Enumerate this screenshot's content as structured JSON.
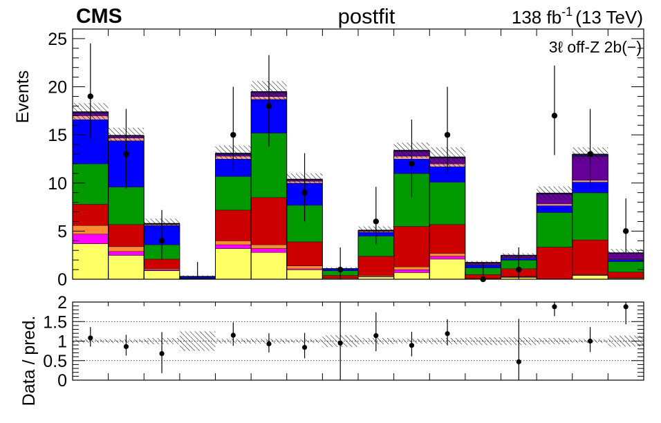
{
  "header": {
    "experiment": "CMS",
    "fit_label": "postfit",
    "lumi_value": "138 fb",
    "lumi_exp": "-1",
    "lumi_energy": "(13 TeV)",
    "region": "3ℓ  off-Z 2b(−)"
  },
  "chart_data": [
    {
      "type": "bar",
      "stacked": true,
      "ylabel": "Events",
      "ylim": [
        0,
        26
      ],
      "yticks": [
        "0",
        "5",
        "10",
        "15",
        "20",
        "25"
      ],
      "bins": 16,
      "colors": {
        "yellow": "#ffff66",
        "magenta": "#ff00ff",
        "orange": "#ff8c33",
        "red": "#cc0000",
        "green": "#009900",
        "blue": "#0000ff",
        "pink": "#f0a0a0",
        "purple": "#660099",
        "navy": "#1a1a66"
      },
      "series": [
        {
          "color": "yellow",
          "values": [
            3.7,
            2.5,
            0.9,
            0.0,
            3.2,
            2.8,
            1.0,
            0.1,
            0.25,
            0.7,
            2.1,
            0.05,
            0.2,
            0.05,
            0.4,
            0.1
          ]
        },
        {
          "color": "magenta",
          "values": [
            1.0,
            0.4,
            0.1,
            0.0,
            0.4,
            0.4,
            0.1,
            0.0,
            0.05,
            0.3,
            0.3,
            0.0,
            0.05,
            0.0,
            0.05,
            0.0
          ]
        },
        {
          "color": "orange",
          "values": [
            0.9,
            0.5,
            0.1,
            0.0,
            0.4,
            0.4,
            0.3,
            0.0,
            0.1,
            0.3,
            0.3,
            0.05,
            0.05,
            0.0,
            0.05,
            0.05
          ]
        },
        {
          "color": "red",
          "values": [
            2.2,
            2.3,
            1.0,
            0.05,
            3.2,
            4.9,
            2.5,
            0.3,
            2.0,
            4.2,
            3.0,
            0.4,
            0.8,
            3.3,
            3.6,
            0.6
          ]
        },
        {
          "color": "green",
          "values": [
            4.2,
            3.9,
            1.5,
            0.05,
            3.5,
            6.7,
            3.8,
            0.5,
            2.1,
            5.5,
            4.4,
            0.7,
            0.9,
            3.6,
            4.9,
            1.1
          ]
        },
        {
          "color": "blue",
          "values": [
            4.6,
            4.8,
            2.0,
            0.15,
            1.8,
            3.5,
            2.3,
            0.2,
            0.4,
            1.5,
            1.6,
            0.3,
            0.2,
            0.7,
            1.1,
            0.2
          ]
        },
        {
          "color": "pink",
          "values": [
            0.4,
            0.3,
            0.1,
            0.0,
            0.3,
            0.3,
            0.2,
            0.0,
            0.1,
            0.3,
            0.3,
            0.05,
            0.05,
            0.2,
            0.2,
            0.05
          ]
        },
        {
          "color": "purple",
          "values": [
            0.3,
            0.2,
            0.05,
            0.0,
            0.2,
            0.4,
            0.15,
            0.0,
            0.05,
            0.5,
            0.6,
            0.15,
            0.2,
            1.0,
            2.5,
            0.6
          ]
        },
        {
          "color": "navy",
          "values": [
            0.1,
            0.05,
            0.05,
            0.05,
            0.1,
            0.1,
            0.05,
            0.0,
            0.05,
            0.1,
            0.1,
            0.05,
            0.05,
            0.1,
            0.2,
            0.05
          ]
        }
      ],
      "uncertainty": [
        0.9,
        0.8,
        0.5,
        0.1,
        0.8,
        1.1,
        0.6,
        0.15,
        0.4,
        0.8,
        1.0,
        0.15,
        0.2,
        0.7,
        0.7,
        0.4
      ],
      "data": {
        "values": [
          19,
          13,
          4,
          null,
          15,
          18,
          9,
          1,
          6,
          12,
          15,
          0,
          1,
          17,
          13,
          5
        ],
        "err_low": [
          4.4,
          3.6,
          2.0,
          null,
          3.9,
          4.2,
          3.0,
          1.0,
          2.4,
          3.5,
          3.9,
          0.0,
          1.0,
          4.1,
          3.6,
          2.2
        ],
        "err_high": [
          5.5,
          4.7,
          3.2,
          1.8,
          5.0,
          5.3,
          4.1,
          2.3,
          3.6,
          4.6,
          5.0,
          1.8,
          2.3,
          5.2,
          4.7,
          3.4
        ]
      }
    },
    {
      "type": "scatter",
      "ylabel": "Data / pred.",
      "ylim": [
        0,
        2
      ],
      "yticks": [
        "0",
        "0.5",
        "1",
        "1.5",
        "2"
      ],
      "reference_lines": [
        0.5,
        1.0,
        1.5
      ],
      "ratio": [
        1.08,
        0.86,
        0.68,
        null,
        1.15,
        0.93,
        0.84,
        0.95,
        1.14,
        0.89,
        1.19,
        null,
        0.47,
        1.88,
        1.0,
        1.88
      ],
      "ratio_err_low": [
        0.22,
        0.23,
        0.5,
        null,
        0.27,
        0.22,
        0.28,
        0.95,
        0.4,
        0.28,
        0.3,
        null,
        0.47,
        0.24,
        0.28,
        0.45
      ],
      "ratio_err_high": [
        0.28,
        0.3,
        0.55,
        null,
        0.33,
        0.27,
        0.37,
        1.5,
        0.6,
        0.35,
        0.37,
        null,
        1.1,
        0.3,
        0.36,
        0.6
      ],
      "band_half_width": [
        0.05,
        0.05,
        0.08,
        0.25,
        0.06,
        0.06,
        0.05,
        0.15,
        0.08,
        0.06,
        0.08,
        0.1,
        0.1,
        0.08,
        0.05,
        0.14
      ]
    }
  ]
}
